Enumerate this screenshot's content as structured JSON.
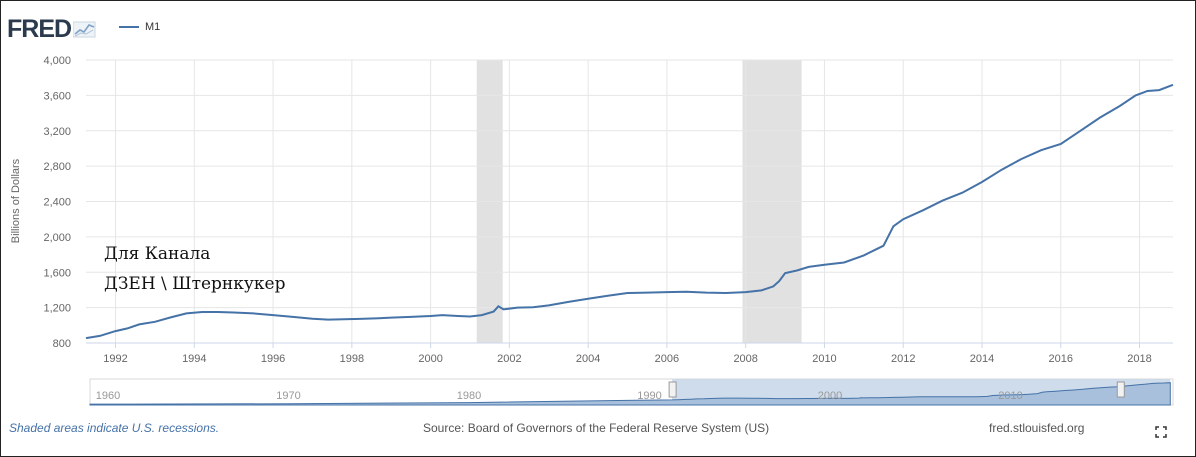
{
  "header": {
    "logo_text": "FRED",
    "legend_label": "M1",
    "colors": {
      "series": "#4572a7",
      "recession": "#e1e1e1",
      "logo": "#2b3b4d"
    }
  },
  "chart_data": {
    "type": "line",
    "title": "M1",
    "xlabel": "",
    "ylabel": "Billions of Dollars",
    "ylim": [
      800,
      4000
    ],
    "xlim": [
      1991.25,
      2018.85
    ],
    "y_ticks": [
      "800",
      "1,200",
      "1,600",
      "2,000",
      "2,400",
      "2,800",
      "3,200",
      "3,600",
      "4,000"
    ],
    "y_tick_values": [
      800,
      1200,
      1600,
      2000,
      2400,
      2800,
      3200,
      3600,
      4000
    ],
    "x_ticks": [
      "1992",
      "1994",
      "1996",
      "1998",
      "2000",
      "2002",
      "2004",
      "2006",
      "2008",
      "2010",
      "2012",
      "2014",
      "2016",
      "2018"
    ],
    "x_tick_values": [
      1992,
      1994,
      1996,
      1998,
      2000,
      2002,
      2004,
      2006,
      2008,
      2010,
      2012,
      2014,
      2016,
      2018
    ],
    "recessions": [
      [
        2001.17,
        2001.83
      ],
      [
        2007.92,
        2009.42
      ]
    ],
    "series": [
      {
        "name": "M1",
        "x": [
          1991.25,
          1991.6,
          1992.0,
          1992.3,
          1992.6,
          1993.0,
          1993.4,
          1993.8,
          1994.2,
          1994.6,
          1995.0,
          1995.5,
          1996.0,
          1996.5,
          1997.0,
          1997.4,
          1997.8,
          1998.2,
          1998.6,
          1999.0,
          1999.5,
          2000.0,
          2000.3,
          2000.7,
          2001.0,
          2001.3,
          2001.6,
          2001.72,
          2001.85,
          2002.2,
          2002.6,
          2003.0,
          2003.5,
          2004.0,
          2004.5,
          2005.0,
          2005.5,
          2006.0,
          2006.5,
          2007.0,
          2007.5,
          2008.0,
          2008.4,
          2008.7,
          2008.85,
          2009.0,
          2009.3,
          2009.6,
          2010.0,
          2010.5,
          2011.0,
          2011.5,
          2011.75,
          2012.0,
          2012.5,
          2013.0,
          2013.5,
          2014.0,
          2014.5,
          2015.0,
          2015.5,
          2016.0,
          2016.5,
          2017.0,
          2017.5,
          2017.9,
          2018.2,
          2018.5,
          2018.85
        ],
        "values": [
          855,
          880,
          935,
          965,
          1010,
          1040,
          1090,
          1135,
          1150,
          1150,
          1145,
          1135,
          1115,
          1095,
          1075,
          1065,
          1068,
          1073,
          1078,
          1087,
          1095,
          1105,
          1115,
          1105,
          1100,
          1115,
          1155,
          1215,
          1180,
          1200,
          1205,
          1225,
          1265,
          1300,
          1335,
          1365,
          1370,
          1375,
          1380,
          1370,
          1365,
          1375,
          1395,
          1440,
          1500,
          1590,
          1620,
          1660,
          1685,
          1710,
          1790,
          1900,
          2120,
          2200,
          2300,
          2410,
          2500,
          2620,
          2760,
          2880,
          2980,
          3050,
          3200,
          3350,
          3480,
          3600,
          3650,
          3660,
          3720
        ]
      }
    ]
  },
  "navigator": {
    "labels": [
      "1960",
      "1970",
      "1980",
      "1990",
      "2000",
      "2010"
    ],
    "label_values": [
      1960,
      1970,
      1980,
      1990,
      2000,
      2010
    ],
    "range": [
      1959,
      2019
    ],
    "selected_range": [
      1991.25,
      2018.85
    ]
  },
  "overlay": {
    "line1": "Для Канала",
    "line2": "ДЗЕН \\ Штернкукер"
  },
  "footer": {
    "recession_note": "Shaded areas indicate U.S. recessions.",
    "source": "Source: Board of Governors of the Federal Reserve System (US)",
    "site": "fred.stlouisfed.org"
  }
}
